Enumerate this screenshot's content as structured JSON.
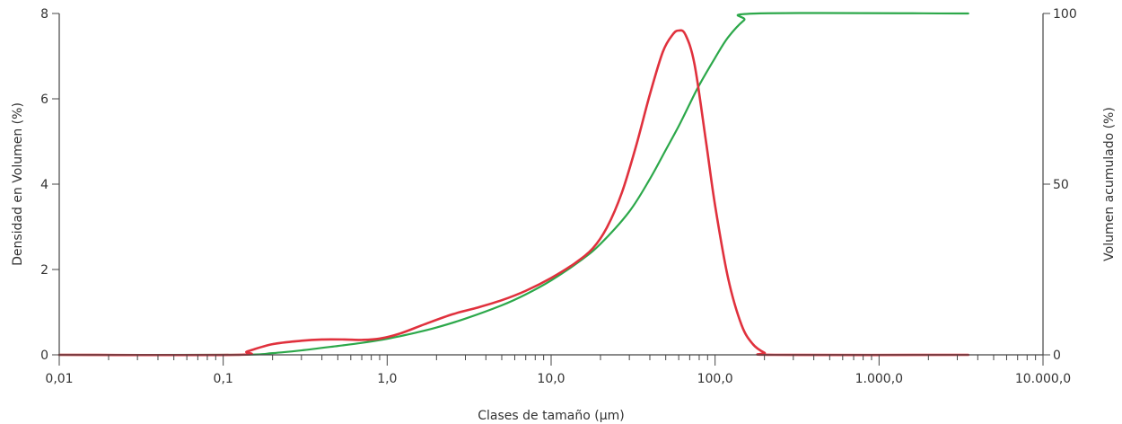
{
  "chart_data": {
    "type": "line",
    "xlabel": "Clases de tamaño (µm)",
    "ylabel_left": "Densidad en Volumen (%)",
    "ylabel_right": "Volumen acumulado (%)",
    "x_scale": "log",
    "xlim": [
      0.01,
      10000
    ],
    "ylim_left": [
      0,
      8
    ],
    "ylim_right": [
      0,
      100
    ],
    "x_tick_values": [
      0.01,
      0.1,
      1,
      10,
      100,
      1000,
      10000
    ],
    "x_tick_labels": [
      "0,01",
      "0,1",
      "1,0",
      "10,0",
      "100,0",
      "1.000,0",
      "10.000,0"
    ],
    "y_left_tick_values": [
      0,
      2,
      4,
      6,
      8
    ],
    "y_left_tick_labels": [
      "0",
      "2",
      "4",
      "6",
      "8"
    ],
    "y_right_tick_values": [
      0,
      50,
      100
    ],
    "y_right_tick_labels": [
      "0",
      "50",
      "100"
    ],
    "grid": false,
    "series": [
      {
        "axis": "left",
        "color": "#e0313d",
        "points": [
          [
            0.01,
            0
          ],
          [
            0.12,
            0
          ],
          [
            0.14,
            0.08
          ],
          [
            0.2,
            0.25
          ],
          [
            0.3,
            0.33
          ],
          [
            0.4,
            0.36
          ],
          [
            0.55,
            0.36
          ],
          [
            0.7,
            0.35
          ],
          [
            0.9,
            0.38
          ],
          [
            1.2,
            0.5
          ],
          [
            1.7,
            0.72
          ],
          [
            2.5,
            0.95
          ],
          [
            3.5,
            1.1
          ],
          [
            5,
            1.28
          ],
          [
            7,
            1.5
          ],
          [
            10,
            1.8
          ],
          [
            14,
            2.15
          ],
          [
            18,
            2.5
          ],
          [
            22,
            3.0
          ],
          [
            27,
            3.8
          ],
          [
            33,
            4.9
          ],
          [
            40,
            6.1
          ],
          [
            48,
            7.1
          ],
          [
            55,
            7.5
          ],
          [
            60,
            7.6
          ],
          [
            66,
            7.5
          ],
          [
            75,
            6.8
          ],
          [
            88,
            5.0
          ],
          [
            100,
            3.5
          ],
          [
            120,
            1.8
          ],
          [
            145,
            0.7
          ],
          [
            170,
            0.25
          ],
          [
            200,
            0.05
          ],
          [
            230,
            0
          ],
          [
            3500,
            0
          ]
        ]
      },
      {
        "axis": "right",
        "color": "#2ca84a",
        "points": [
          [
            0.01,
            0
          ],
          [
            0.12,
            0
          ],
          [
            0.2,
            0.5
          ],
          [
            0.3,
            1.3
          ],
          [
            0.5,
            2.6
          ],
          [
            0.7,
            3.5
          ],
          [
            1,
            4.7
          ],
          [
            1.5,
            6.5
          ],
          [
            2,
            8.0
          ],
          [
            3,
            10.6
          ],
          [
            5,
            14.5
          ],
          [
            7,
            17.7
          ],
          [
            10,
            21.8
          ],
          [
            15,
            27.5
          ],
          [
            20,
            32.5
          ],
          [
            30,
            42
          ],
          [
            40,
            51.5
          ],
          [
            50,
            60
          ],
          [
            60,
            67
          ],
          [
            70,
            73.5
          ],
          [
            80,
            79
          ],
          [
            100,
            87
          ],
          [
            120,
            93
          ],
          [
            150,
            98
          ],
          [
            180,
            100
          ],
          [
            3500,
            100
          ]
        ]
      }
    ]
  }
}
